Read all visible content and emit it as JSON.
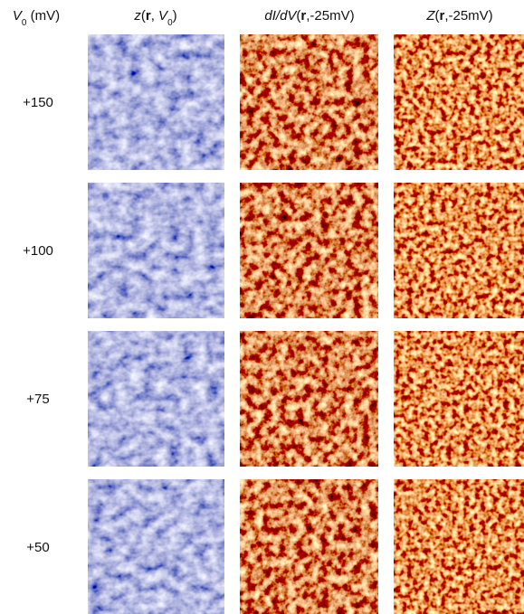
{
  "header": {
    "columns": [
      {
        "parts": [
          "V",
          "0",
          " (mV)"
        ]
      },
      {
        "parts": [
          "z",
          "(",
          "r",
          ", ",
          "V",
          "0",
          ")"
        ]
      },
      {
        "parts": [
          "dI/dV",
          "(",
          "r",
          ",-25mV)"
        ]
      },
      {
        "parts": [
          "Z",
          "(",
          "r",
          ",-25mV)"
        ]
      }
    ]
  },
  "rows": [
    {
      "label": "+150"
    },
    {
      "label": "+100"
    },
    {
      "label": "+75"
    },
    {
      "label": "+50"
    }
  ]
}
